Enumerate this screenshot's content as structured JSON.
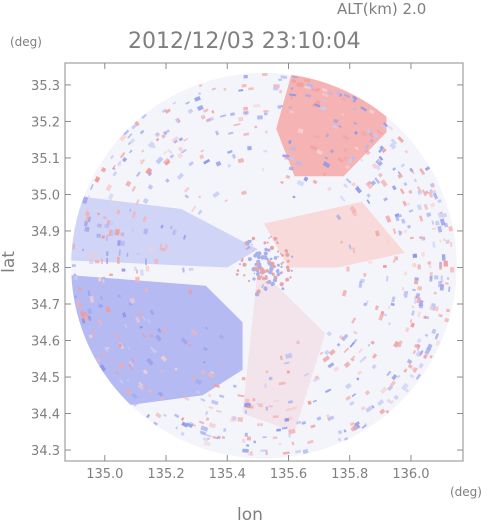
{
  "chart_data": {
    "type": "heatmap",
    "title": "2012/12/03 23:10:04",
    "subtitle": "ALT(km) 2.0",
    "xlabel": "lon",
    "ylabel": "lat",
    "xunit": "(deg)",
    "yunit": "(deg)",
    "xlim": [
      134.87,
      136.17
    ],
    "ylim": [
      34.27,
      35.36
    ],
    "x_ticks": [
      "135.0",
      "135.2",
      "135.4",
      "135.6",
      "135.8",
      "136.0"
    ],
    "y_ticks": [
      "35.3",
      "35.2",
      "35.1",
      "35.0",
      "34.9",
      "34.8",
      "34.7",
      "34.6",
      "34.5",
      "34.4",
      "34.3"
    ],
    "radar_center": {
      "lon": 135.52,
      "lat": 34.805
    },
    "radar_range_deg": 0.63,
    "colors": {
      "positive": "#f2a0a0",
      "negative": "#a9b0f0",
      "neutral": "#f4f4fb",
      "axis": "#8c8c8c"
    },
    "regions": [
      {
        "name": "positive-northeast",
        "lon_range": [
          135.6,
          135.95
        ],
        "lat_range": [
          35.05,
          35.36
        ],
        "sign": "positive"
      },
      {
        "name": "negative-southwest",
        "lon_range": [
          134.9,
          135.45
        ],
        "lat_range": [
          34.4,
          34.8
        ],
        "sign": "negative"
      },
      {
        "name": "negative-west",
        "lon_range": [
          134.87,
          135.4
        ],
        "lat_range": [
          34.85,
          35.0
        ],
        "sign": "negative"
      }
    ]
  }
}
